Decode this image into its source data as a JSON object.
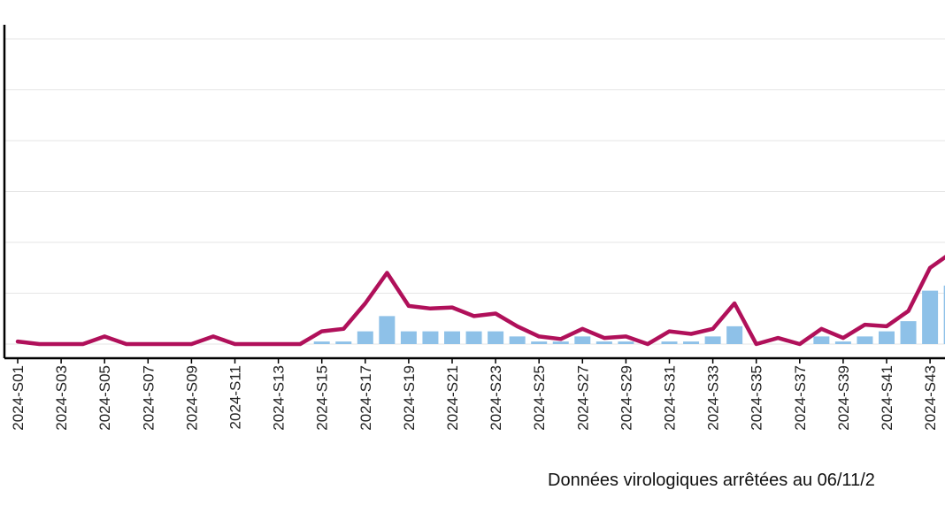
{
  "chart_data": {
    "type": "bar+line",
    "title": "",
    "xlabel": "",
    "ylabel": "",
    "grid": true,
    "ylim": [
      0,
      7
    ],
    "categories": [
      "2024-S01",
      "2024-S02",
      "2024-S03",
      "2024-S04",
      "2024-S05",
      "2024-S06",
      "2024-S07",
      "2024-S08",
      "2024-S09",
      "2024-S10",
      "2024-S11",
      "2024-S12",
      "2024-S13",
      "2024-S14",
      "2024-S15",
      "2024-S16",
      "2024-S17",
      "2024-S18",
      "2024-S19",
      "2024-S20",
      "2024-S21",
      "2024-S22",
      "2024-S23",
      "2024-S24",
      "2024-S25",
      "2024-S26",
      "2024-S27",
      "2024-S28",
      "2024-S29",
      "2024-S30",
      "2024-S31",
      "2024-S32",
      "2024-S33",
      "2024-S34",
      "2024-S35",
      "2024-S36",
      "2024-S37",
      "2024-S38",
      "2024-S39",
      "2024-S40",
      "2024-S41",
      "2024-S42",
      "2024-S43",
      "2024-S44"
    ],
    "tick_labels": [
      "2024-S01",
      "2024-S03",
      "2024-S05",
      "2024-S07",
      "2024-S09",
      "2024-S11",
      "2024-S13",
      "2024-S15",
      "2024-S17",
      "2024-S19",
      "2024-S21",
      "2024-S23",
      "2024-S25",
      "2024-S27",
      "2024-S29",
      "2024-S31",
      "2024-S33",
      "2024-S35",
      "2024-S37",
      "2024-S39",
      "2024-S41",
      "2024-S43"
    ],
    "series": [
      {
        "type": "bar",
        "color": "#8ec1e8",
        "values": [
          0,
          0,
          0,
          0,
          0,
          0,
          0,
          0,
          0,
          0,
          0,
          0,
          0,
          0,
          0.05,
          0.05,
          0.25,
          0.55,
          0.25,
          0.25,
          0.25,
          0.25,
          0.25,
          0.15,
          0.05,
          0.05,
          0.15,
          0.05,
          0.05,
          0,
          0.05,
          0.05,
          0.15,
          0.35,
          0,
          0,
          0,
          0.15,
          0.05,
          0.15,
          0.25,
          0.45,
          1.05,
          1.15
        ]
      },
      {
        "type": "line",
        "color": "#b0105a",
        "values": [
          0.05,
          0,
          0,
          0,
          0.15,
          0,
          0,
          0,
          0,
          0.15,
          0,
          0,
          0,
          0,
          0.25,
          0.3,
          0.8,
          1.4,
          0.75,
          0.7,
          0.72,
          0.55,
          0.6,
          0.35,
          0.15,
          0.1,
          0.3,
          0.12,
          0.15,
          0,
          0.25,
          0.2,
          0.3,
          0.8,
          0,
          0.12,
          0,
          0.3,
          0.12,
          0.38,
          0.35,
          0.65,
          1.5,
          1.8
        ]
      }
    ]
  },
  "footnote": "Données virologiques arrêtées au 06/11/2"
}
